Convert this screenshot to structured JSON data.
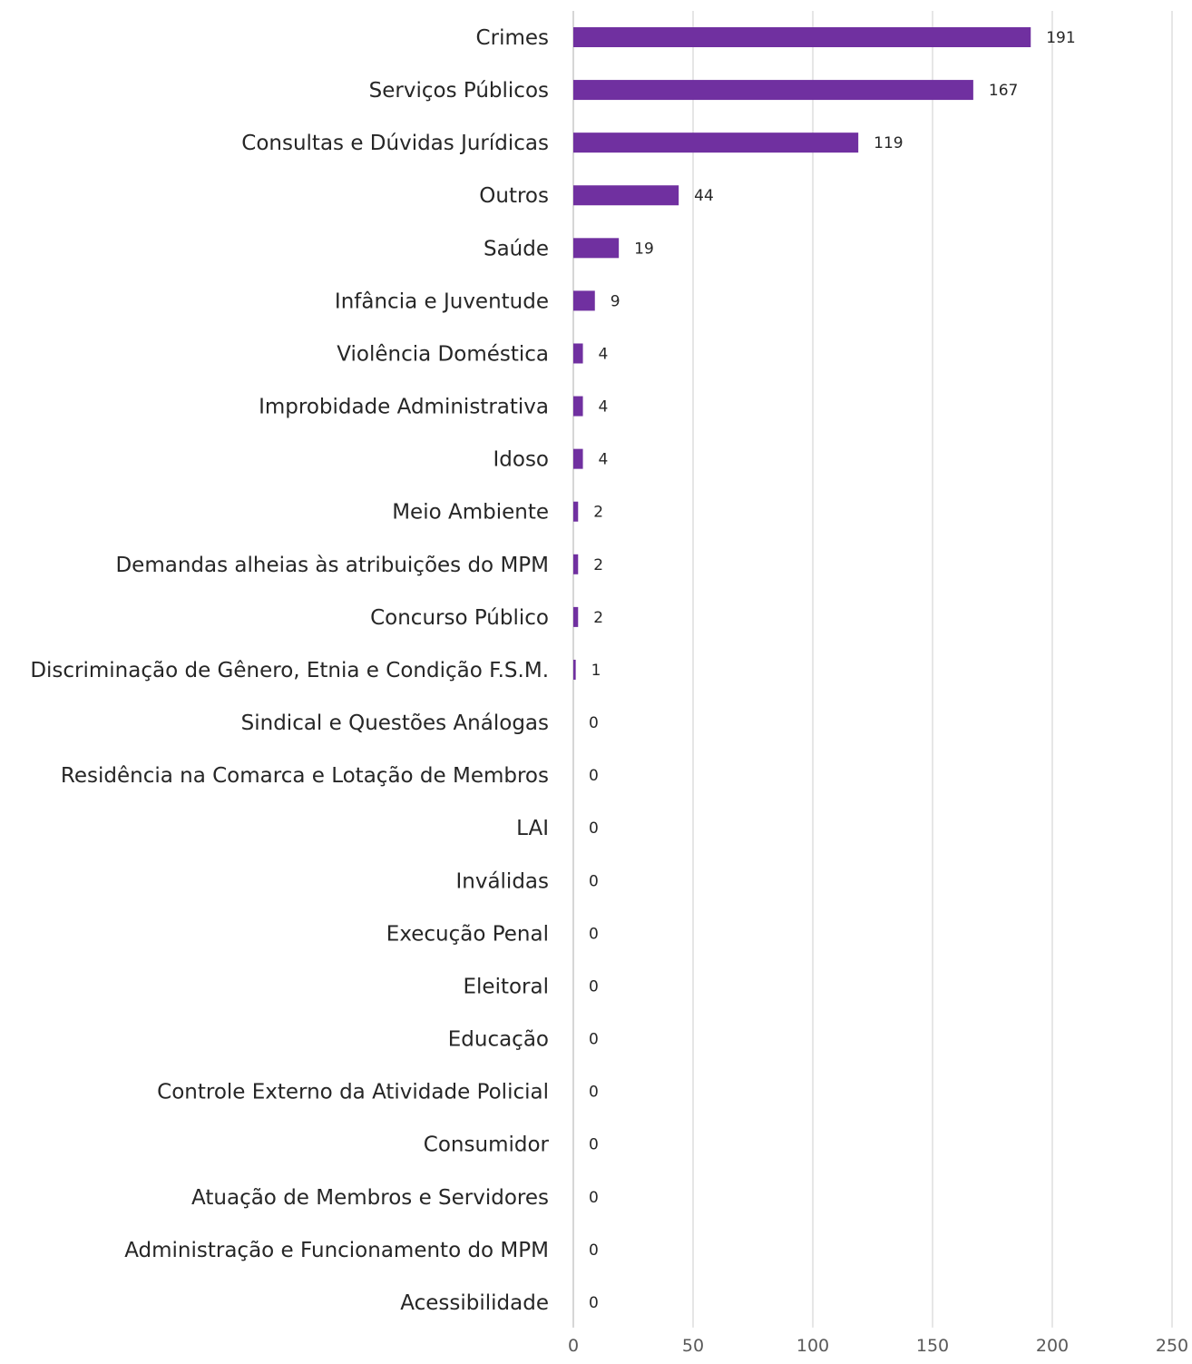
{
  "chart_data": {
    "type": "bar",
    "orientation": "horizontal",
    "title": "",
    "xlabel": "",
    "ylabel": "",
    "xlim": [
      0,
      250
    ],
    "x_ticks": [
      0,
      50,
      100,
      150,
      200,
      250
    ],
    "gridlines": "vertical",
    "legend": "none",
    "bar_color": "#7030a0",
    "categories": [
      "Crimes",
      "Serviços Públicos",
      "Consultas e Dúvidas Jurídicas",
      "Outros",
      "Saúde",
      "Infância e Juventude",
      "Violência Doméstica",
      "Improbidade Administrativa",
      "Idoso",
      "Meio Ambiente",
      "Demandas alheias às atribuições do MPM",
      "Concurso Público",
      "Discriminação de Gênero, Etnia e Condição F.S.M.",
      "Sindical e Questões Análogas",
      "Residência na Comarca e Lotação de Membros",
      "LAI",
      "Inválidas",
      "Execução Penal",
      "Eleitoral",
      "Educação",
      "Controle Externo da Atividade Policial",
      "Consumidor",
      "Atuação de Membros e Servidores",
      "Administração e Funcionamento do MPM",
      "Acessibilidade"
    ],
    "values": [
      191,
      167,
      119,
      44,
      19,
      9,
      4,
      4,
      4,
      2,
      2,
      2,
      1,
      0,
      0,
      0,
      0,
      0,
      0,
      0,
      0,
      0,
      0,
      0,
      0
    ]
  }
}
